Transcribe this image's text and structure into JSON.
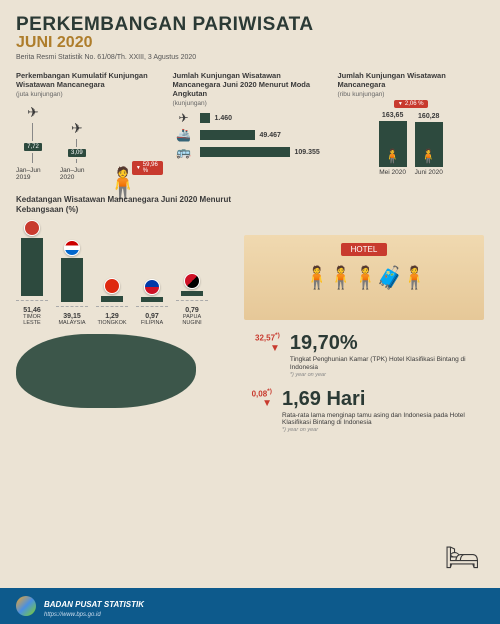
{
  "header": {
    "title": "PERKEMBANGAN PARIWISATA",
    "date": "JUNI 2020",
    "sub": "Berita Resmi Statistik No. 61/08/Th. XXIII, 3 Agustus 2020"
  },
  "cumulative": {
    "title": "Perkembangan Kumulatif Kunjungan Wisatawan Mancanegara",
    "unit": "(juta kunjungan)",
    "y2019": "7,72",
    "y2020": "3,09",
    "lbl2019": "Jan–Jun 2019",
    "lbl2020": "Jan–Jun 2020",
    "change": "59,96 %"
  },
  "transport": {
    "title": "Jumlah Kunjungan Wisatawan Mancanegara Juni 2020 Menurut Moda Angkutan",
    "unit": "(kunjungan)",
    "air": {
      "val": "1.460",
      "w": 10
    },
    "sea": {
      "val": "49.467",
      "w": 55
    },
    "land": {
      "val": "109.355",
      "w": 90
    }
  },
  "visits": {
    "title": "Jumlah Kunjungan Wisatawan Mancanegara",
    "unit": "(ribu kunjungan)",
    "change": "2,06 %",
    "mei": {
      "v": "163,65",
      "h": 46,
      "lbl": "Mei 2020"
    },
    "jun": {
      "v": "160,28",
      "h": 45,
      "lbl": "Juni 2020"
    }
  },
  "nationality": {
    "title": "Kedatangan Wisatawan Mancanegara Juni 2020 Menurut Kebangsaan (%)",
    "items": [
      {
        "v": "51,46",
        "lbl": "TIMOR LESTE",
        "h": 58,
        "flag": "#c83a2e"
      },
      {
        "v": "39,15",
        "lbl": "MALAYSIA",
        "h": 44,
        "flag": "linear-gradient(#c00 33%,#fff 33%,#fff 66%,#06c 66%)"
      },
      {
        "v": "1,29",
        "lbl": "TIONGKOK",
        "h": 6,
        "flag": "#de2910"
      },
      {
        "v": "0,97",
        "lbl": "FILIPINA",
        "h": 5,
        "flag": "linear-gradient(#0038a8 50%,#ce1126 50%)"
      },
      {
        "v": "0,79",
        "lbl": "PAPUA NUGINI",
        "h": 5,
        "flag": "linear-gradient(135deg,#ce1126 50%,#000 50%)"
      }
    ]
  },
  "hotel": {
    "sign": "HOTEL"
  },
  "tpk": {
    "arrow": "32,57",
    "sup": "*)",
    "big": "19,70%",
    "desc": "Tingkat Penghunian Kamar (TPK) Hotel Klasifikasi Bintang di Indonesia",
    "note": "*) year on year"
  },
  "stay": {
    "arrow": "0,08",
    "sup": "*)",
    "big": "1,69 Hari",
    "desc": "Rata-rata lama menginap tamu asing dan Indonesia pada Hotel Klasifikasi Bintang di Indonesia",
    "note": "*) year on year"
  },
  "footer": {
    "org": "BADAN PUSAT STATISTIK",
    "url": "https://www.bps.go.id"
  },
  "colors": {
    "bar": "#2d4a3e",
    "accent": "#ae7d2b",
    "red": "#c83a2e",
    "bg": "#ebe3d4",
    "footer": "#0d5a8c"
  }
}
